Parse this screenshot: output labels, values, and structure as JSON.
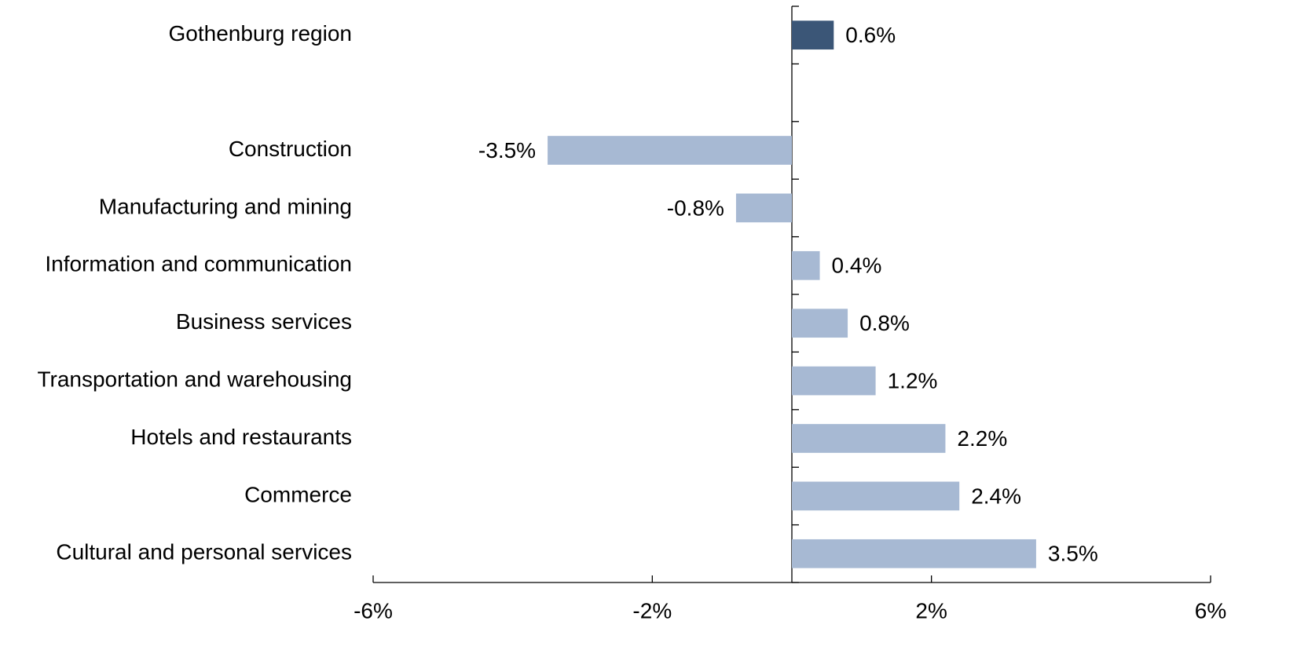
{
  "chart_data": {
    "type": "barh",
    "categories": [
      "Gothenburg region",
      null,
      "Construction",
      "Manufacturing and mining",
      "Information and communication",
      "Business services",
      "Transportation and warehousing",
      "Hotels and restaurants",
      "Commerce",
      "Cultural and personal services"
    ],
    "values": [
      0.6,
      null,
      -3.5,
      -0.8,
      0.4,
      0.8,
      1.2,
      2.2,
      2.4,
      3.5
    ],
    "value_labels": [
      "0.6%",
      null,
      "-3.5%",
      "-0.8%",
      "0.4%",
      "0.8%",
      "1.2%",
      "2.2%",
      "2.4%",
      "3.5%"
    ],
    "colors": [
      "#3b5677",
      null,
      "#a7b9d3",
      "#a7b9d3",
      "#a7b9d3",
      "#a7b9d3",
      "#a7b9d3",
      "#a7b9d3",
      "#a7b9d3",
      "#a7b9d3"
    ],
    "xlim": [
      -6,
      6
    ],
    "xticks": [
      {
        "value": -6,
        "label": "-6%"
      },
      {
        "value": -2,
        "label": "-2%"
      },
      {
        "value": 2,
        "label": "2%"
      },
      {
        "value": 6,
        "label": "6%"
      }
    ]
  }
}
